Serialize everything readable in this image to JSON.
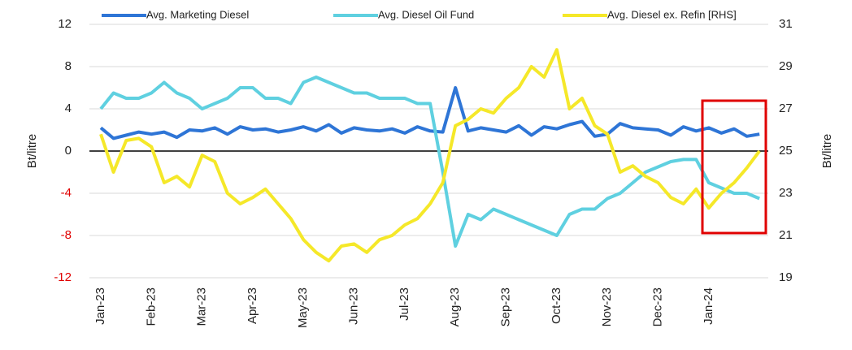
{
  "chart_data": {
    "type": "line",
    "categories": [
      "Jan-23",
      null,
      null,
      null,
      "Feb-23",
      null,
      null,
      null,
      "Mar-23",
      null,
      null,
      null,
      "Apr-23",
      null,
      null,
      null,
      "May-23",
      null,
      null,
      null,
      "Jun-23",
      null,
      null,
      null,
      "Jul-23",
      null,
      null,
      null,
      "Aug-23",
      null,
      null,
      null,
      "Sep-23",
      null,
      null,
      null,
      "Oct-23",
      null,
      null,
      null,
      "Nov-23",
      null,
      null,
      null,
      "Dec-23",
      null,
      null,
      null,
      "Jan-24",
      null,
      null,
      null,
      null
    ],
    "series": [
      {
        "name": "Avg. Marketing Diesel",
        "color": "#2e75d6",
        "values": [
          2.2,
          1.2,
          1.5,
          1.8,
          1.6,
          1.8,
          1.3,
          2.0,
          1.9,
          2.2,
          1.6,
          2.3,
          2.0,
          2.1,
          1.8,
          2.0,
          2.3,
          1.9,
          2.5,
          1.7,
          2.2,
          2.0,
          1.9,
          2.1,
          1.7,
          2.3,
          1.9,
          1.8,
          6.0,
          1.9,
          2.2,
          2.0,
          1.8,
          2.4,
          1.5,
          2.3,
          2.1,
          2.5,
          2.8,
          1.4,
          1.6,
          2.6,
          2.2,
          2.1,
          2.0,
          1.5,
          2.3,
          1.9,
          2.2,
          1.7,
          2.1,
          1.4,
          1.6
        ]
      },
      {
        "name": "Avg. Diesel Oil Fund",
        "color": "#5fd0e0",
        "values": [
          4,
          5.5,
          5,
          5,
          5.5,
          6.5,
          5.5,
          5,
          4,
          4.5,
          5,
          6,
          6,
          5,
          5,
          4.5,
          6.5,
          7,
          6.5,
          6,
          5.5,
          5.5,
          5,
          5,
          5,
          4.5,
          4.5,
          -2,
          -9,
          -6,
          -6.5,
          -5.5,
          -6,
          -6.5,
          -7,
          -7.5,
          -8,
          -6,
          -5.5,
          -5.5,
          -4.5,
          -4,
          -3,
          -2,
          -1.5,
          -1,
          -0.8,
          -0.8,
          -3,
          -3.5,
          -4,
          -4,
          -4.5
        ]
      },
      {
        "name": "Avg. Diesel ex. Refin [RHS]",
        "color": "#f5e829",
        "axis": "y2",
        "values": [
          25.8,
          24,
          25.5,
          25.6,
          25.2,
          23.5,
          23.8,
          23.3,
          24.8,
          24.5,
          23,
          22.5,
          22.8,
          23.2,
          22.5,
          21.8,
          20.8,
          20.2,
          19.8,
          20.5,
          20.6,
          20.2,
          20.8,
          21,
          21.5,
          21.8,
          22.5,
          23.5,
          26.2,
          26.5,
          27,
          26.8,
          27.5,
          28,
          29,
          28.5,
          29.8,
          27,
          27.5,
          26.2,
          25.8,
          24,
          24.3,
          23.8,
          23.5,
          22.8,
          22.5,
          23.2,
          22.3,
          23,
          23.5,
          24.2,
          25
        ]
      }
    ],
    "ylabel": "Bt/litre",
    "y2label": "Bt/litre",
    "ylim": [
      -12,
      12
    ],
    "yticks": [
      12,
      8,
      4,
      0,
      -4,
      -8,
      -12
    ],
    "y2lim": [
      19,
      31
    ],
    "y2ticks": [
      31,
      29,
      27,
      25,
      23,
      21,
      19
    ],
    "negative_tick_color": "#e00000",
    "grid": true,
    "zero_line": true,
    "legend": "top"
  }
}
